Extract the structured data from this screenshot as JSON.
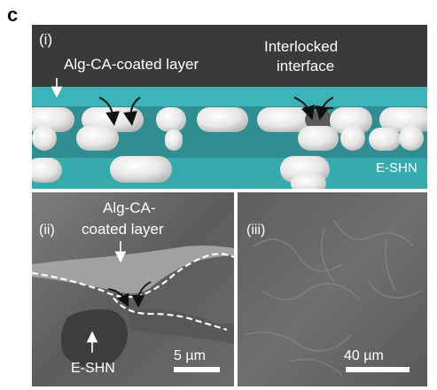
{
  "panel_letter": "c",
  "panel_i": {
    "label": "(i)",
    "coated_layer_label": "Alg-CA-coated layer",
    "interface_label_line1": "Interlocked",
    "interface_label_line2": "interface",
    "substrate_label": "E-SHN"
  },
  "panel_ii": {
    "label": "(ii)",
    "coated_layer_label_line1": "Alg-CA-",
    "coated_layer_label_line2": "coated layer",
    "substrate_label": "E-SHN",
    "scale_label": "5 µm"
  },
  "panel_iii": {
    "label": "(iii)",
    "scale_label": "40 µm"
  },
  "colors": {
    "dark_bg": "#3a3a3a",
    "teal_layer": "#3ab4b8",
    "particle": "#e4e4e4",
    "sem_gray": "#6e6e6e"
  }
}
